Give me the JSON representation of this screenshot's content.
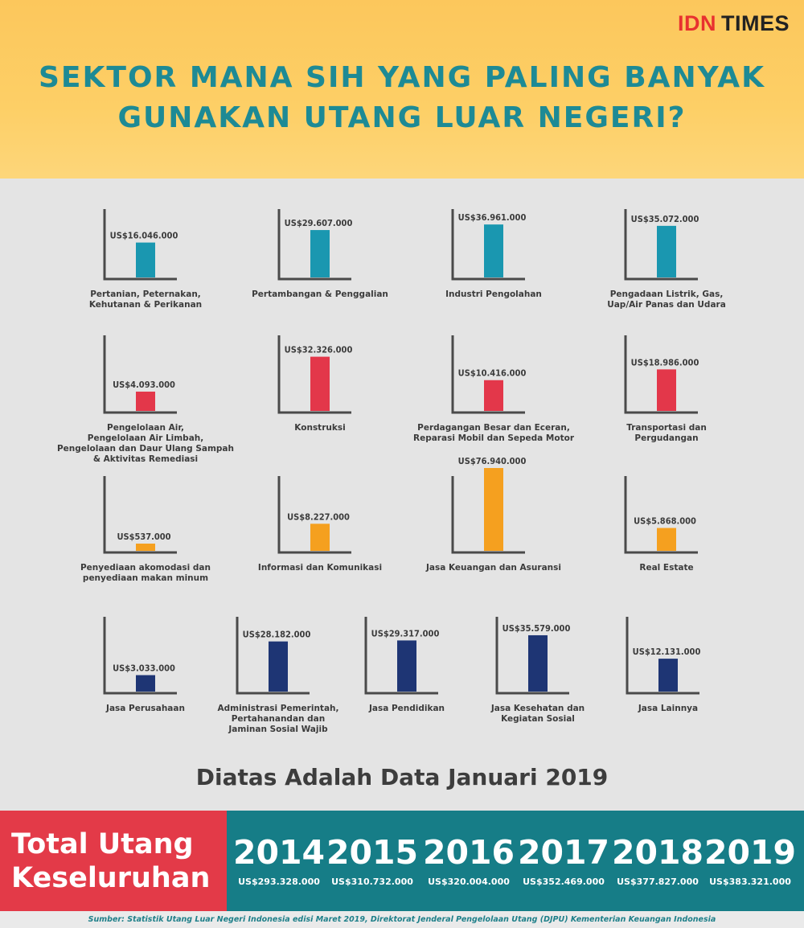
{
  "brand": {
    "idn": "IDN",
    "times": "TIMES"
  },
  "title_line1": "SEKTOR MANA SIH YANG PALING BANYAK",
  "title_line2": "GUNAKAN UTANG LUAR NEGERI?",
  "chart_data": {
    "type": "bar",
    "unit": "US$",
    "series": [
      {
        "label": "US$16.046.000",
        "value": 16046000,
        "category": [
          "Pertanian, Peternakan,",
          "Kehutanan & Perikanan"
        ],
        "color": "#1a97b0"
      },
      {
        "label": "US$29.607.000",
        "value": 29607000,
        "category": [
          "Pertambangan & Penggalian"
        ],
        "color": "#1a97b0"
      },
      {
        "label": "US$36.961.000",
        "value": 36961000,
        "category": [
          "Industri Pengolahan"
        ],
        "color": "#1a97b0"
      },
      {
        "label": "US$35.072.000",
        "value": 35072000,
        "category": [
          "Pengadaan Listrik, Gas,",
          "Uap/Air Panas dan Udara"
        ],
        "color": "#1a97b0"
      },
      {
        "label": "US$4.093.000",
        "value": 4093000,
        "category": [
          "Pengelolaan Air,",
          "Pengelolaan Air Limbah,",
          "Pengelolaan dan Daur Ulang Sampah",
          "& Aktivitas Remediasi"
        ],
        "color": "#e3374a"
      },
      {
        "label": "US$32.326.000",
        "value": 32326000,
        "category": [
          "Konstruksi"
        ],
        "color": "#e3374a"
      },
      {
        "label": "US$10.416.000",
        "value": 10416000,
        "category": [
          "Perdagangan Besar dan Eceran,",
          "Reparasi Mobil dan Sepeda Motor"
        ],
        "color": "#e3374a"
      },
      {
        "label": "US$18.986.000",
        "value": 18986000,
        "category": [
          "Transportasi dan",
          "Pergudangan"
        ],
        "color": "#e3374a"
      },
      {
        "label": "US$537.000",
        "value": 537000,
        "category": [
          "Penyediaan akomodasi dan",
          "penyediaan makan minum"
        ],
        "color": "#f5a01f"
      },
      {
        "label": "US$8.227.000",
        "value": 8227000,
        "category": [
          "Informasi dan Komunikasi"
        ],
        "color": "#f5a01f"
      },
      {
        "label": "US$76.940.000",
        "value": 76940000,
        "category": [
          "Jasa Keuangan dan Asuransi"
        ],
        "color": "#f5a01f"
      },
      {
        "label": "US$5.868.000",
        "value": 5868000,
        "category": [
          "Real Estate"
        ],
        "color": "#f5a01f"
      },
      {
        "label": "US$3.033.000",
        "value": 3033000,
        "category": [
          "Jasa Perusahaan"
        ],
        "color": "#1e3574"
      },
      {
        "label": "US$28.182.000",
        "value": 28182000,
        "category": [
          "Administrasi Pemerintah,",
          "Pertahanandan dan",
          "Jaminan Sosial Wajib"
        ],
        "color": "#1e3574"
      },
      {
        "label": "US$29.317.000",
        "value": 29317000,
        "category": [
          "Jasa Pendidikan"
        ],
        "color": "#1e3574"
      },
      {
        "label": "US$35.579.000",
        "value": 35579000,
        "category": [
          "Jasa Kesehatan dan",
          "Kegiatan Sosial"
        ],
        "color": "#1e3574"
      },
      {
        "label": "US$12.131.000",
        "value": 12131000,
        "category": [
          "Jasa Lainnya"
        ],
        "color": "#1e3574"
      }
    ]
  },
  "note": "Diatas Adalah Data Januari 2019",
  "total_label_line1": "Total Utang",
  "total_label_line2": "Keseluruhan",
  "years": [
    {
      "year": "2014",
      "value": "US$293.328.000"
    },
    {
      "year": "2015",
      "value": "US$310.732.000"
    },
    {
      "year": "2016",
      "value": "US$320.004.000"
    },
    {
      "year": "2017",
      "value": "US$352.469.000"
    },
    {
      "year": "2018",
      "value": "US$377.827.000"
    },
    {
      "year": "2019",
      "value": "US$383.321.000"
    }
  ],
  "source": "Sumber: Statistik Utang Luar Negeri Indonesia edisi Maret 2019, Direktorat Jenderal Pengelolaan Utang (DJPU) Kementerian Keuangan Indonesia"
}
